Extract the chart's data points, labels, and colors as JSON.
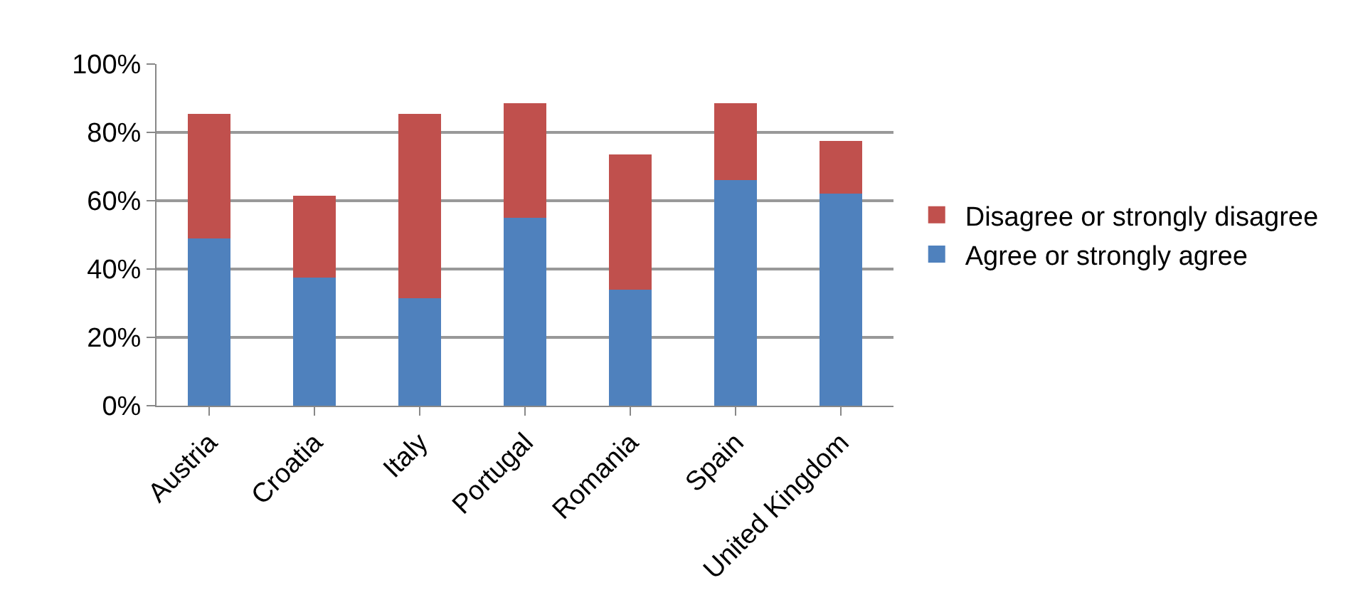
{
  "chart_data": {
    "type": "bar",
    "stacked": true,
    "categories": [
      "Austria",
      "Croatia",
      "Italy",
      "Portugal",
      "Romania",
      "Spain",
      "United Kingdom"
    ],
    "series": [
      {
        "name": "Agree or strongly agree",
        "color": "#4f81bd",
        "values": [
          49,
          37.5,
          31.5,
          55,
          34,
          66,
          62
        ]
      },
      {
        "name": "Disagree or strongly disagree",
        "color": "#c0504d",
        "values": [
          36.5,
          24,
          54,
          33.5,
          39.5,
          22.5,
          15.5
        ]
      }
    ],
    "ylim": [
      0,
      100
    ],
    "yticks": [
      {
        "value": 0,
        "label": "0%"
      },
      {
        "value": 20,
        "label": "20%"
      },
      {
        "value": 40,
        "label": "40%"
      },
      {
        "value": 60,
        "label": "60%"
      },
      {
        "value": 80,
        "label": "80%"
      },
      {
        "value": 100,
        "label": "100%"
      }
    ],
    "grid": "y",
    "legend": "right"
  }
}
